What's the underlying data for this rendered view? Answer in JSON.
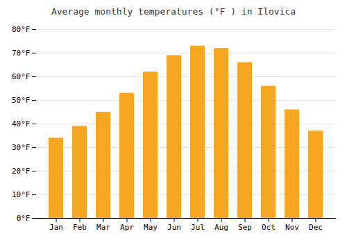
{
  "chart_data": {
    "type": "bar",
    "title": "Average monthly temperatures (°F ) in Ilovica",
    "categories": [
      "Jan",
      "Feb",
      "Mar",
      "Apr",
      "May",
      "Jun",
      "Jul",
      "Aug",
      "Sep",
      "Oct",
      "Nov",
      "Dec"
    ],
    "values": [
      34,
      39,
      45,
      53,
      62,
      69,
      73,
      72,
      66,
      56,
      46,
      37
    ],
    "color": "#F5A623",
    "ylim": [
      0,
      80
    ],
    "yticks": [
      {
        "value": 0,
        "label": "0°F"
      },
      {
        "value": 10,
        "label": "10°F"
      },
      {
        "value": 20,
        "label": "20°F"
      },
      {
        "value": 30,
        "label": "30°F"
      },
      {
        "value": 40,
        "label": "40°F"
      },
      {
        "value": 50,
        "label": "50°F"
      },
      {
        "value": 60,
        "label": "60°F"
      },
      {
        "value": 70,
        "label": "70°F"
      },
      {
        "value": 80,
        "label": "80°F"
      }
    ],
    "grid": true
  }
}
